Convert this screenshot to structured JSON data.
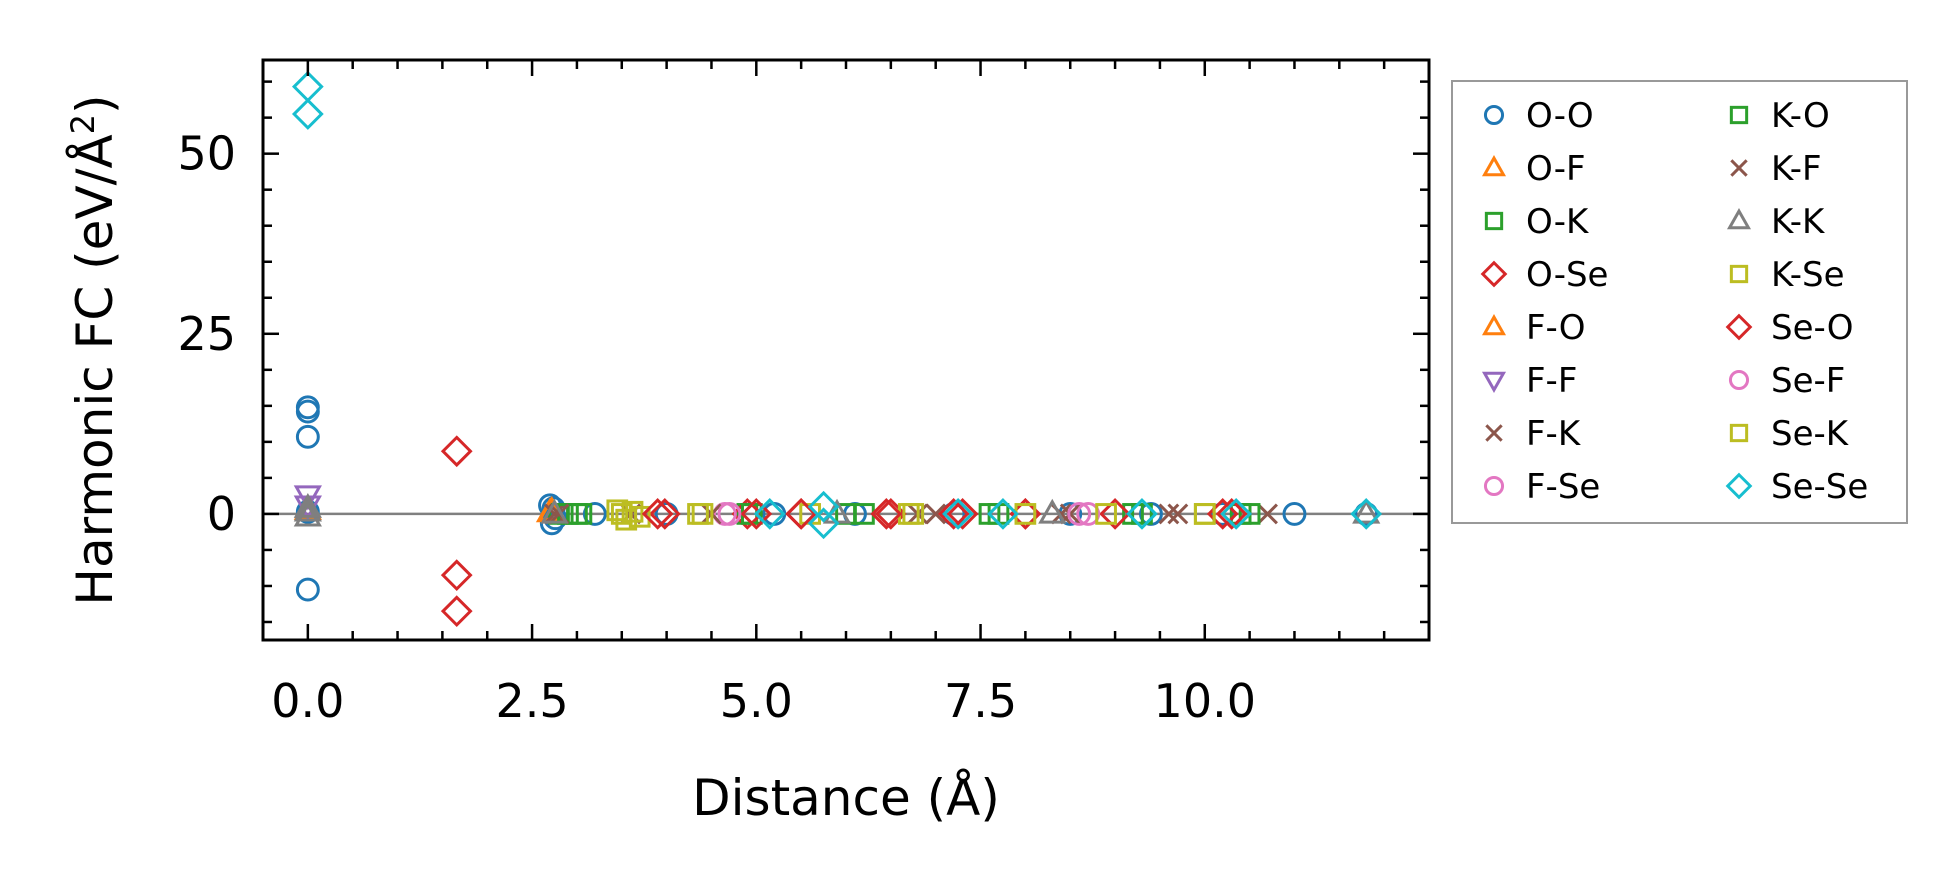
{
  "chart_data": {
    "type": "scatter",
    "xlabel": "Distance (Å)",
    "ylabel_main": "Harmonic FC (eV/Å",
    "ylabel_sup": "2",
    "ylabel_end": ")",
    "xlim": [
      -0.5,
      12.5
    ],
    "ylim": [
      -17.5,
      63
    ],
    "xticks": [
      0.0,
      2.5,
      5.0,
      7.5,
      10.0
    ],
    "xtick_labels": [
      "0.0",
      "2.5",
      "5.0",
      "7.5",
      "10.0"
    ],
    "yticks": [
      0,
      25,
      50
    ],
    "ytick_labels": [
      "0",
      "25",
      "50"
    ],
    "zero_line": true,
    "grid": false,
    "legend_position": "outside-right",
    "series": [
      {
        "name": "O-O",
        "marker": "circle",
        "color": "#1f77b4",
        "x": [
          0,
          0,
          0,
          0,
          0,
          2.7,
          2.72,
          2.74,
          2.76,
          3.2,
          4.0,
          5.2,
          6.1,
          7.2,
          8.5,
          9.4,
          10.2,
          11.0,
          11.8
        ],
        "y": [
          14.8,
          14.2,
          10.7,
          -10.5,
          0.3,
          1.2,
          -1.3,
          0.8,
          -0.6,
          0,
          0,
          0,
          0,
          0,
          0,
          0,
          0,
          0,
          0
        ]
      },
      {
        "name": "O-F",
        "marker": "triangle-up",
        "color": "#ff7f0e",
        "x": [
          0,
          2.7
        ],
        "y": [
          0.5,
          0.2
        ]
      },
      {
        "name": "O-K",
        "marker": "square",
        "color": "#2ca02c",
        "x": [
          2.8,
          3.0,
          4.9,
          6.0,
          7.6,
          9.2,
          10.4
        ],
        "y": [
          0,
          0,
          0,
          0,
          0,
          0,
          0
        ]
      },
      {
        "name": "O-Se",
        "marker": "diamond",
        "color": "#d62728",
        "x": [
          1.66,
          1.66,
          1.66,
          3.98,
          4.9,
          5.5,
          6.5,
          7.2,
          8.0,
          9.0,
          10.2
        ],
        "y": [
          8.7,
          -8.5,
          -13.5,
          0,
          0,
          0,
          0,
          0,
          0,
          0,
          0
        ]
      },
      {
        "name": "F-O",
        "marker": "triangle-up",
        "color": "#ff7f0e",
        "x": [
          2.72
        ],
        "y": [
          0.4
        ]
      },
      {
        "name": "F-F",
        "marker": "triangle-down",
        "color": "#9467bd",
        "x": [
          0,
          0
        ],
        "y": [
          2.6,
          1.2
        ]
      },
      {
        "name": "F-K",
        "marker": "x",
        "color": "#8c564b",
        "x": [
          2.75,
          3.6,
          6.8,
          8.5,
          9.7,
          10.7
        ],
        "y": [
          0,
          0,
          0,
          0,
          0,
          0
        ]
      },
      {
        "name": "F-Se",
        "marker": "circle",
        "color": "#e377c2",
        "x": [
          4.65,
          8.7
        ],
        "y": [
          0,
          0
        ]
      },
      {
        "name": "K-O",
        "marker": "square",
        "color": "#2ca02c",
        "x": [
          2.9,
          3.05,
          4.95,
          6.2,
          7.7,
          9.3,
          10.5
        ],
        "y": [
          0,
          0,
          0,
          0,
          0,
          0,
          0
        ]
      },
      {
        "name": "K-F",
        "marker": "x",
        "color": "#8c564b",
        "x": [
          2.8,
          4.5,
          7.0,
          8.4,
          9.6
        ],
        "y": [
          0,
          0,
          0,
          0,
          0
        ]
      },
      {
        "name": "K-K",
        "marker": "triangle-up",
        "color": "#7f7f7f",
        "x": [
          0,
          0,
          0,
          2.75,
          5.9,
          8.3,
          11.8
        ],
        "y": [
          0.3,
          -0.4,
          0.8,
          0,
          0,
          0,
          0
        ]
      },
      {
        "name": "K-Se",
        "marker": "square",
        "color": "#bcbd22",
        "x": [
          3.45,
          3.55,
          3.62,
          3.7,
          4.35,
          5.6,
          6.7,
          8.9,
          10.0
        ],
        "y": [
          0.5,
          -0.8,
          0.3,
          -0.4,
          0,
          0,
          0,
          0,
          0
        ]
      },
      {
        "name": "Se-O",
        "marker": "diamond",
        "color": "#d62728",
        "x": [
          3.9,
          5.0,
          5.5,
          6.45,
          7.3,
          8.0,
          10.3
        ],
        "y": [
          0,
          0,
          0,
          0,
          0,
          0,
          0
        ]
      },
      {
        "name": "Se-F",
        "marker": "circle",
        "color": "#e377c2",
        "x": [
          4.7,
          8.6
        ],
        "y": [
          0,
          0
        ]
      },
      {
        "name": "Se-K",
        "marker": "square",
        "color": "#bcbd22",
        "x": [
          3.5,
          4.4,
          6.75,
          8.0,
          10.0
        ],
        "y": [
          0,
          0,
          0,
          0,
          0
        ]
      },
      {
        "name": "Se-Se",
        "marker": "diamond",
        "color": "#17becf",
        "x": [
          0,
          0,
          5.15,
          5.75,
          5.75,
          7.25,
          7.75,
          9.3,
          10.35,
          11.8
        ],
        "y": [
          59.3,
          55.5,
          0,
          1.0,
          -1.3,
          0,
          0,
          0,
          0,
          0
        ]
      }
    ]
  }
}
